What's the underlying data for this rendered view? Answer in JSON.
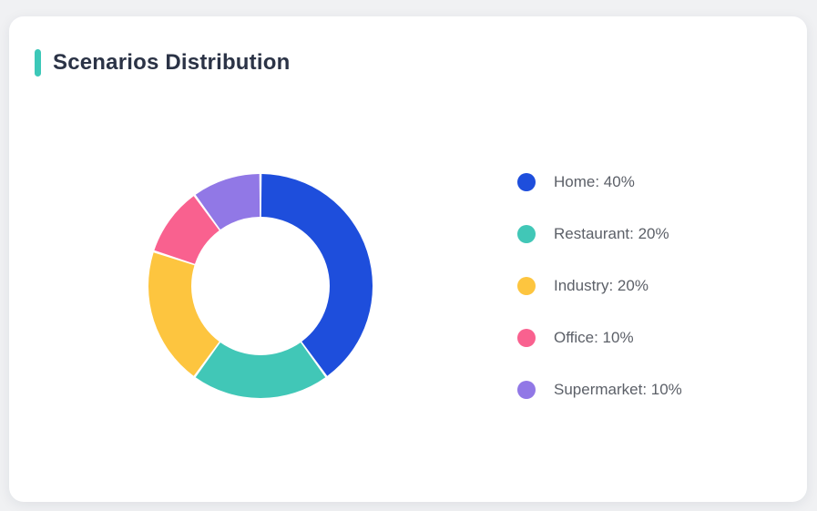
{
  "card": {
    "title": "Scenarios Distribution"
  },
  "colors": {
    "page_background": "#F0F1F3",
    "card_background": "#FFFFFF",
    "accent_bar": "#3CC8B8",
    "title_text": "#2B3346",
    "legend_text": "#5C6068"
  },
  "chart_data": {
    "type": "pie",
    "subtype": "donut",
    "title": "Scenarios Distribution",
    "categories": [
      "Home",
      "Restaurant",
      "Industry",
      "Office",
      "Supermarket"
    ],
    "values": [
      40,
      20,
      20,
      10,
      10
    ],
    "unit": "%",
    "colors": [
      "#1E4EDC",
      "#41C7B7",
      "#FDC53F",
      "#F9618F",
      "#9178E6"
    ],
    "legend_labels": [
      "Home: 40%",
      "Restaurant: 20%",
      "Industry: 20%",
      "Office: 10%",
      "Supermarket: 10%"
    ],
    "legend_position": "right",
    "start_angle_deg": 0,
    "direction": "clockwise",
    "outer_radius_px": 123,
    "inner_radius_px": 76,
    "slice_gap_deg": 1.2
  }
}
